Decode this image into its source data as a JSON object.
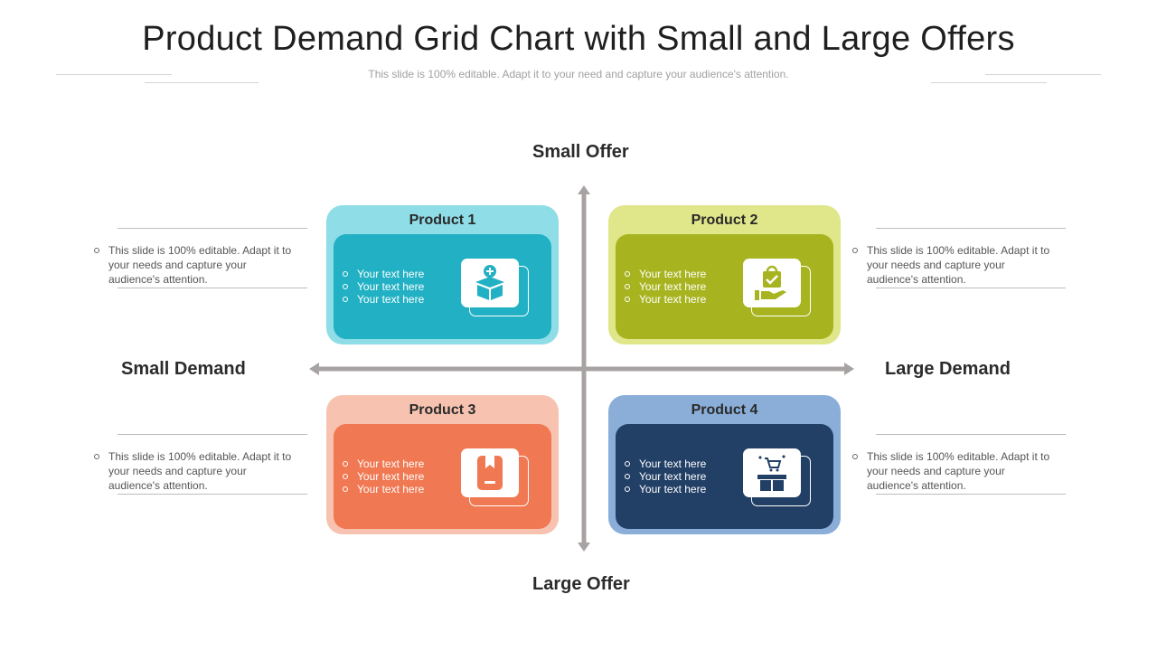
{
  "title": "Product Demand Grid Chart with Small and Large Offers",
  "subtitle": "This slide is 100% editable. Adapt it to your need and capture your audience's attention.",
  "axes": {
    "top": "Small Offer",
    "bottom": "Large Offer",
    "left": "Small Demand",
    "right": "Large Demand"
  },
  "side_text": "This slide is 100% editable. Adapt it to your needs and capture your audience's attention.",
  "products": [
    {
      "title": "Product 1",
      "bullets": [
        "Your text here",
        "Your text here",
        "Your text here"
      ],
      "icon": "box-add-icon",
      "outer_color": "#8edde7",
      "inner_color": "#22b1c4"
    },
    {
      "title": "Product 2",
      "bullets": [
        "Your text here",
        "Your text here",
        "Your text here"
      ],
      "icon": "hand-bag-check-icon",
      "outer_color": "#e0e68a",
      "inner_color": "#a8b41f"
    },
    {
      "title": "Product 3",
      "bullets": [
        "Your text here",
        "Your text here",
        "Your text here"
      ],
      "icon": "package-label-icon",
      "outer_color": "#f7c3b0",
      "inner_color": "#f07852"
    },
    {
      "title": "Product 4",
      "bullets": [
        "Your text here",
        "Your text here",
        "Your text here"
      ],
      "icon": "cart-box-icon",
      "outer_color": "#8aaed8",
      "inner_color": "#223f66"
    }
  ]
}
